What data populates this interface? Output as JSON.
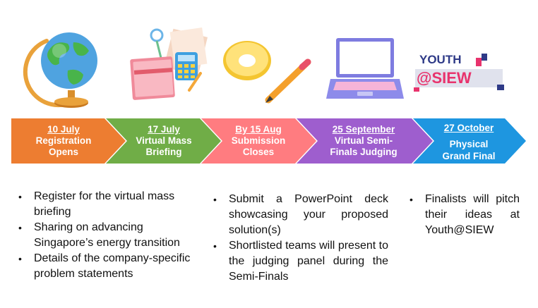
{
  "stages": [
    {
      "date": "10 July",
      "title": "Registration Opens",
      "color": "#ED7D31"
    },
    {
      "date": "17 July",
      "title": "Virtual Mass Briefing",
      "color": "#70AD47"
    },
    {
      "date": "By 15 Aug",
      "title": "Submission Closes",
      "color": "#FF7C80"
    },
    {
      "date": "25 September",
      "title": "Virtual Semi-Finals Judging",
      "color": "#9E5ECE"
    },
    {
      "date": "27 October",
      "title": "Physical Grand Final",
      "color": "#1E96E0"
    }
  ],
  "columns": [
    {
      "bullets": [
        "Register for the virtual mass briefing",
        "Sharing on advancing Singapore’s energy transition",
        "Details of the company-specific problem statements"
      ]
    },
    {
      "bullets": [
        "Submit a PowerPoint deck showcasing your proposed solution(s)",
        "Shortlisted teams will present to the judging panel during the Semi-Finals"
      ]
    },
    {
      "bullets": [
        "Finalists will pitch their ideas at Youth@SIEW"
      ]
    }
  ],
  "logo": {
    "line1": "YOUTH",
    "line2": "@SIEW"
  },
  "icons": [
    "globe-icon",
    "stationery-icon",
    "donut-pencil-icon",
    "laptop-icon"
  ]
}
